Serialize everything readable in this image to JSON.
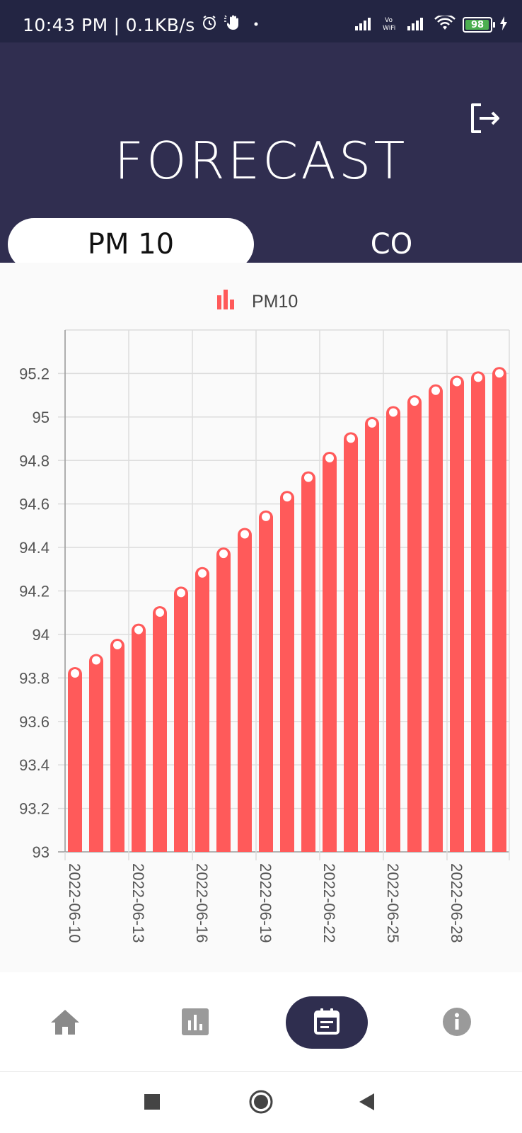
{
  "status_bar": {
    "time": "10:43 PM",
    "separator": "|",
    "net_speed": "0.1KB/s",
    "battery_level": "98",
    "battery_fraction": 0.98
  },
  "header": {
    "title": "FORECAST",
    "logout_icon": "logout-icon"
  },
  "tabs": [
    {
      "label": "PM 10",
      "active": true
    },
    {
      "label": "CO",
      "active": false
    }
  ],
  "chart_data": {
    "type": "bar",
    "legend": "PM10",
    "legend_placement": "top-center",
    "grid": true,
    "bar_color": "#ff5a5a",
    "ylim": [
      93,
      95.4
    ],
    "yticks": [
      93,
      93.2,
      93.4,
      93.6,
      93.8,
      94,
      94.2,
      94.4,
      94.6,
      94.8,
      95,
      95.2
    ],
    "ytick_labels": [
      "93",
      "93.2",
      "93.4",
      "93.6",
      "93.8",
      "94",
      "94.2",
      "94.4",
      "94.6",
      "94.8",
      "95",
      "95.2"
    ],
    "xtick_labels": [
      "2022-06-10",
      "2022-06-13",
      "2022-06-16",
      "2022-06-19",
      "2022-06-22",
      "2022-06-25",
      "2022-06-28"
    ],
    "categories": [
      "2022-06-10",
      "2022-06-11",
      "2022-06-12",
      "2022-06-13",
      "2022-06-14",
      "2022-06-15",
      "2022-06-16",
      "2022-06-17",
      "2022-06-18",
      "2022-06-19",
      "2022-06-20",
      "2022-06-21",
      "2022-06-22",
      "2022-06-23",
      "2022-06-24",
      "2022-06-25",
      "2022-06-26",
      "2022-06-27",
      "2022-06-28",
      "2022-06-29",
      "2022-06-30"
    ],
    "values": [
      93.85,
      93.91,
      93.98,
      94.05,
      94.13,
      94.22,
      94.31,
      94.4,
      94.49,
      94.57,
      94.66,
      94.75,
      94.84,
      94.93,
      95.0,
      95.05,
      95.1,
      95.15,
      95.19,
      95.21,
      95.23
    ]
  },
  "bottom_nav": [
    {
      "icon": "home-icon",
      "active": false
    },
    {
      "icon": "bar-chart-icon",
      "active": false
    },
    {
      "icon": "calendar-icon",
      "active": true
    },
    {
      "icon": "info-icon",
      "active": false
    }
  ],
  "system_nav": [
    {
      "icon": "recents-square-icon"
    },
    {
      "icon": "home-circle-icon"
    },
    {
      "icon": "back-triangle-icon"
    }
  ]
}
